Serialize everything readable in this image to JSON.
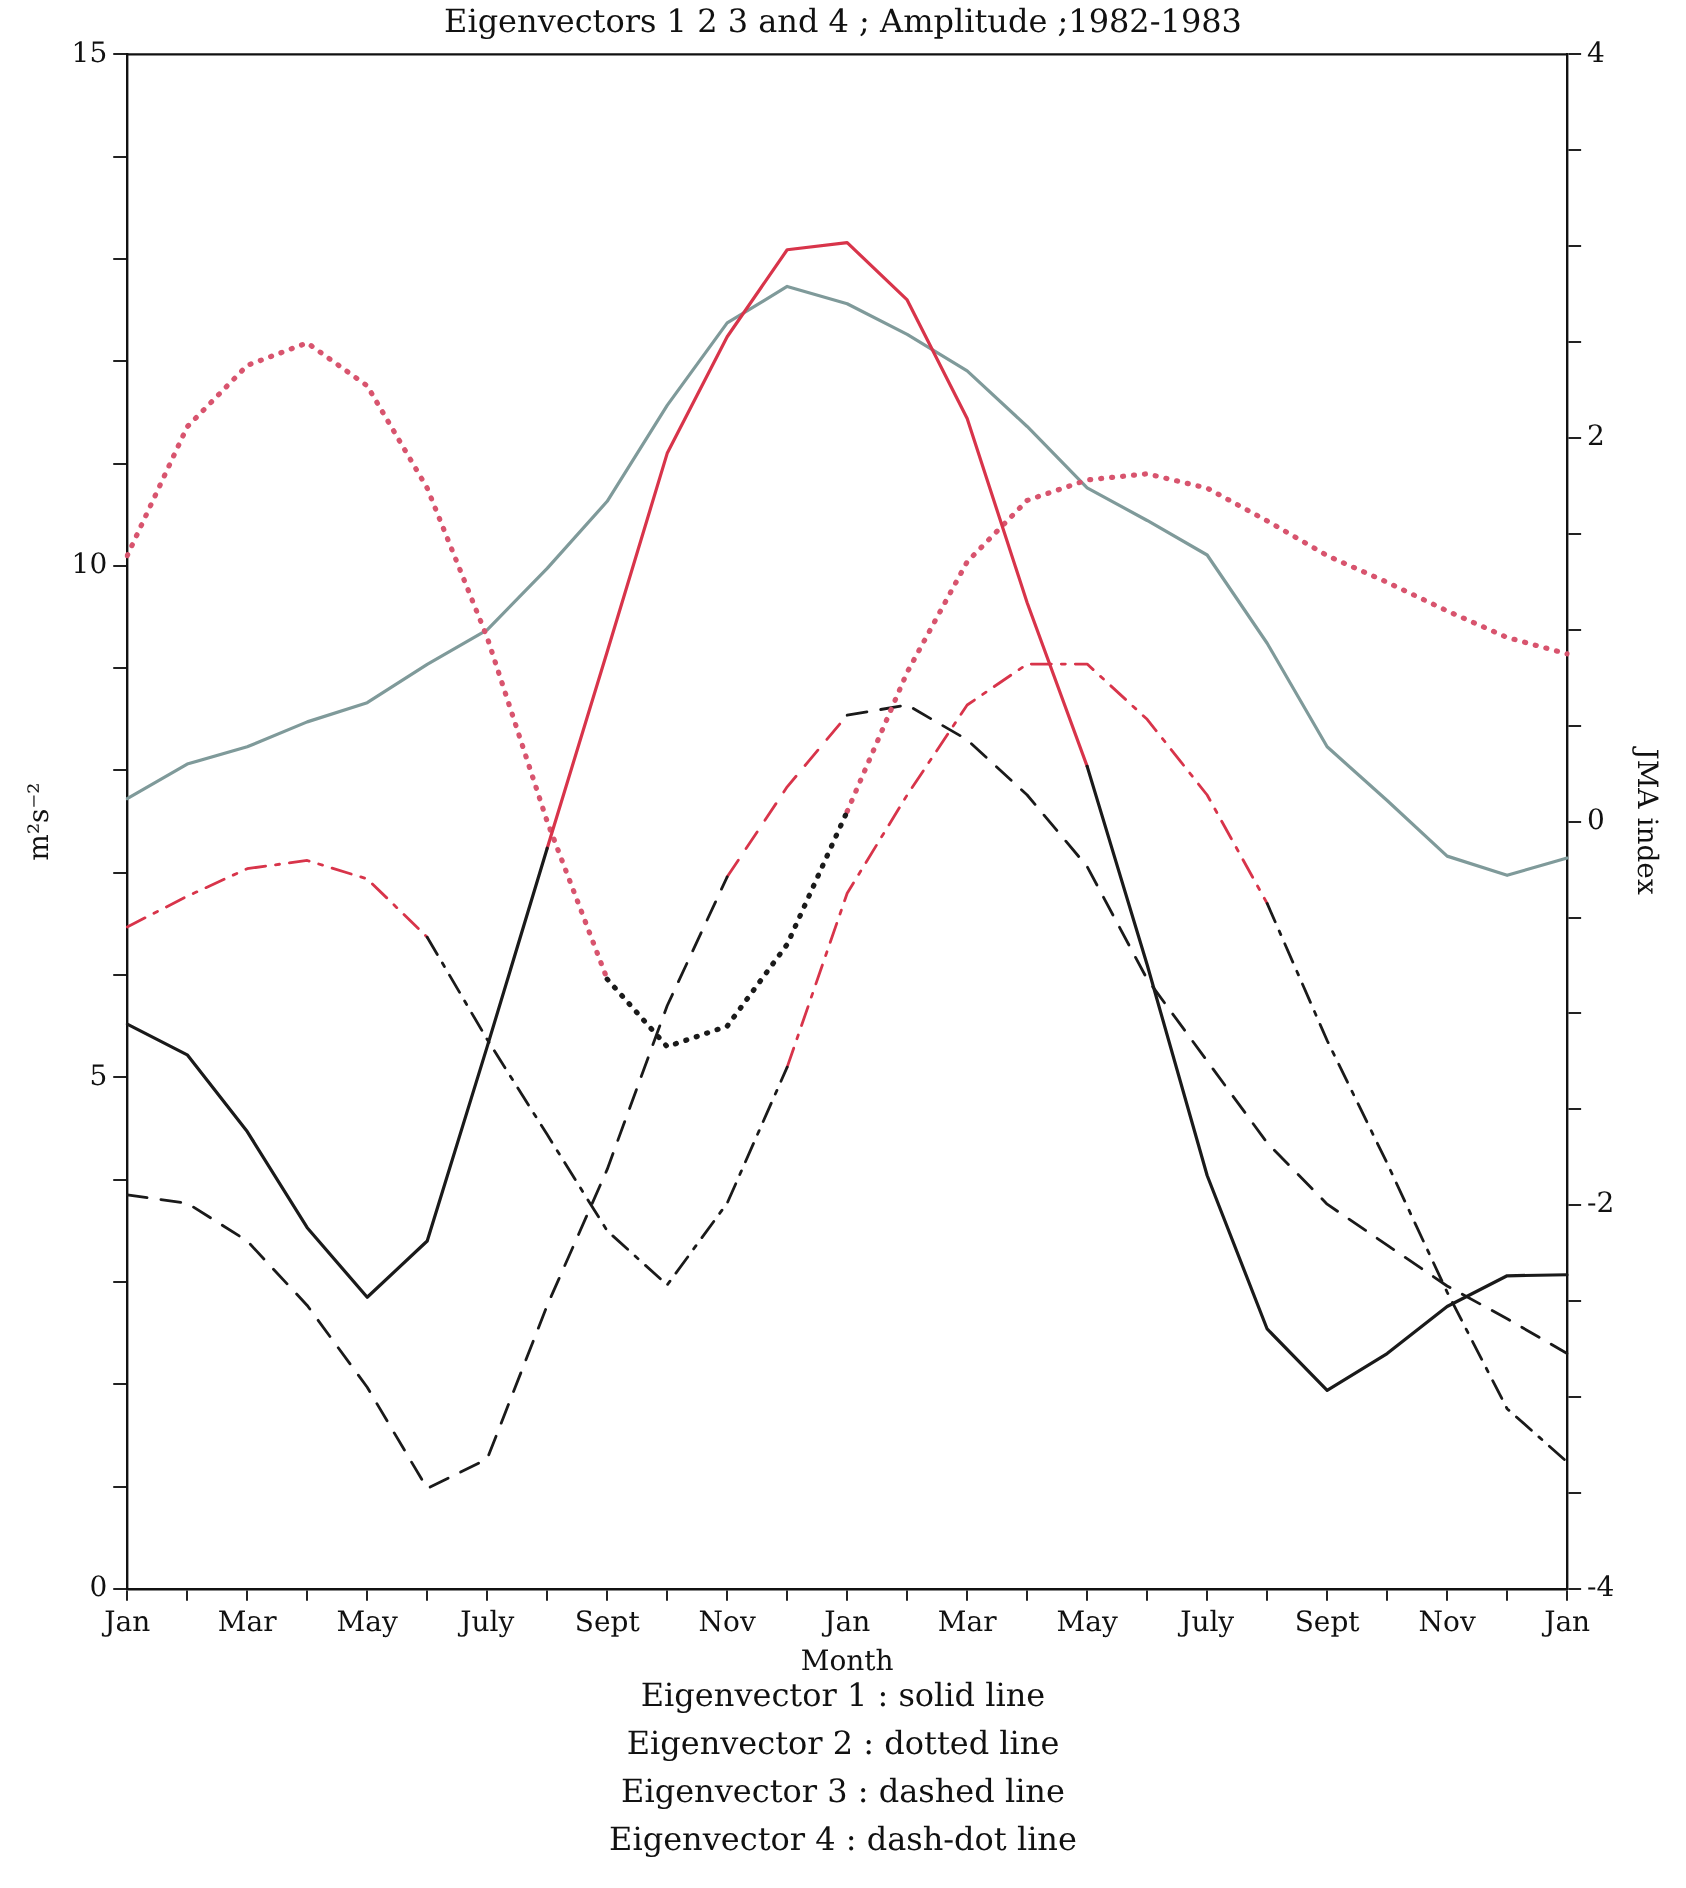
{
  "chart_data": {
    "type": "line",
    "title": "Eigenvectors 1 2 3 and 4 ; Amplitude ;1982-1983",
    "xlabel": "Month",
    "ylabel": "m²s⁻²",
    "y2label": "JMA index",
    "categories": [
      "Jan",
      null,
      "Mar",
      null,
      "May",
      null,
      "July",
      null,
      "Sept",
      null,
      "Nov",
      null,
      "Jan",
      null,
      "Mar",
      null,
      "May",
      null,
      "July",
      null,
      "Sept",
      null,
      "Nov",
      null,
      "Jan"
    ],
    "ylim": [
      0,
      15
    ],
    "yticks": [
      0,
      {
        "value": 1,
        "label": null
      },
      {
        "value": 2,
        "label": null
      },
      {
        "value": 3,
        "label": null
      },
      {
        "value": 4,
        "label": null
      },
      5,
      {
        "value": 6,
        "label": null
      },
      {
        "value": 7,
        "label": null
      },
      {
        "value": 8,
        "label": null
      },
      {
        "value": 9,
        "label": null
      },
      10,
      {
        "value": 11,
        "label": null
      },
      {
        "value": 12,
        "label": null
      },
      {
        "value": 13,
        "label": null
      },
      {
        "value": 14,
        "label": null
      },
      15
    ],
    "y2lim": [
      -4,
      4
    ],
    "y2ticks": [
      -4,
      {
        "value": -3.5,
        "label": null
      },
      {
        "value": -3,
        "label": null
      },
      {
        "value": -2.5,
        "label": null
      },
      -2,
      {
        "value": -1.5,
        "label": null
      },
      {
        "value": -1,
        "label": null
      },
      {
        "value": -0.5,
        "label": null
      },
      0,
      {
        "value": 0.5,
        "label": null
      },
      {
        "value": 1,
        "label": null
      },
      {
        "value": 1.5,
        "label": null
      },
      2,
      {
        "value": 2.5,
        "label": null
      },
      {
        "value": 3,
        "label": null
      },
      {
        "value": 3.5,
        "label": null
      },
      4
    ],
    "grid": false,
    "legend": false,
    "marker": "none",
    "series": [
      {
        "color": "#1a1a1a",
        "line_style": "solid",
        "values": [
          5.52,
          5.22,
          4.47,
          3.53,
          2.85,
          3.4,
          5.3,
          7.24,
          null,
          null,
          null,
          null,
          null,
          null,
          null,
          null,
          8.04,
          6.1,
          4.04,
          2.54,
          1.94,
          2.3,
          2.76,
          3.06,
          3.07
        ]
      },
      {
        "color": "#d8344a",
        "line_style": "solid",
        "values": [
          null,
          null,
          null,
          null,
          null,
          null,
          null,
          7.24,
          9.16,
          11.1,
          12.24,
          13.09,
          13.16,
          12.6,
          11.44,
          9.64,
          8.04,
          null,
          null,
          null,
          null,
          null,
          null,
          null,
          null
        ]
      },
      {
        "color": "#1a1a1a",
        "line_style": "dotted",
        "values": [
          null,
          null,
          null,
          null,
          null,
          null,
          null,
          null,
          5.96,
          5.3,
          5.5,
          6.3,
          7.6,
          null,
          null,
          null,
          null,
          null,
          null,
          null,
          null,
          null,
          null,
          null,
          null
        ]
      },
      {
        "color": "#d8546e",
        "line_style": "dotted",
        "values": [
          10.1,
          11.36,
          11.96,
          12.18,
          11.76,
          10.76,
          9.3,
          7.5,
          5.96,
          null,
          null,
          null,
          7.6,
          8.96,
          10.04,
          10.64,
          10.84,
          10.9,
          10.76,
          10.44,
          10.1,
          9.84,
          9.56,
          9.3,
          9.14
        ]
      },
      {
        "color": "#1a1a1a",
        "line_style": "dashed",
        "values": [
          3.85,
          3.77,
          3.4,
          2.77,
          1.97,
          0.98,
          1.27,
          2.77,
          4.1,
          5.7,
          6.96,
          null,
          8.54,
          8.64,
          8.3,
          7.76,
          7.06,
          5.96,
          5.16,
          4.36,
          3.76,
          3.36,
          2.96,
          2.64,
          2.3
        ]
      },
      {
        "color": "#d8344a",
        "line_style": "dashed",
        "values": [
          null,
          null,
          null,
          null,
          null,
          null,
          null,
          null,
          null,
          null,
          6.96,
          7.84,
          8.54,
          null,
          null,
          null,
          null,
          null,
          null,
          null,
          null,
          null,
          null,
          null,
          null
        ]
      },
      {
        "color": "#1a1a1a",
        "line_style": "dashdot",
        "values": [
          null,
          null,
          null,
          null,
          null,
          6.37,
          5.37,
          4.44,
          3.5,
          2.97,
          3.77,
          5.1,
          null,
          null,
          null,
          null,
          null,
          null,
          null,
          6.7,
          5.36,
          4.16,
          2.9,
          1.76,
          1.24
        ]
      },
      {
        "color": "#d8344a",
        "line_style": "dashdot",
        "values": [
          6.47,
          6.77,
          7.04,
          7.12,
          6.94,
          6.37,
          null,
          null,
          null,
          null,
          null,
          5.1,
          6.8,
          7.76,
          8.64,
          9.04,
          9.04,
          8.5,
          7.76,
          6.7,
          null,
          null,
          null,
          null,
          null
        ]
      },
      {
        "color": "#7f9a9a",
        "line_style": "solid",
        "axis": "y2",
        "values": [
          0.12,
          0.3,
          0.39,
          0.52,
          0.62,
          0.82,
          1.0,
          1.32,
          1.67,
          2.17,
          2.6,
          2.79,
          2.7,
          2.54,
          2.35,
          2.06,
          1.74,
          1.57,
          1.39,
          0.93,
          0.39,
          0.11,
          -0.18,
          -0.28,
          -0.19
        ]
      }
    ],
    "annotations": [
      "Eigenvector 1 : solid line",
      "Eigenvector 2 : dotted line",
      "Eigenvector 3 : dashed line",
      "Eigenvector 4 : dash-dot line"
    ]
  }
}
